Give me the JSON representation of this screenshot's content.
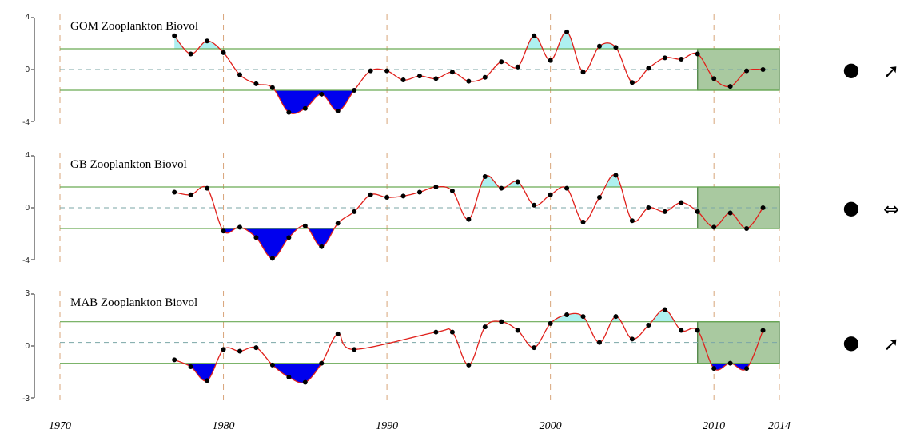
{
  "chart_data": [
    {
      "type": "line",
      "title": "GOM Zooplankton Biovol",
      "ylim": [
        -4,
        4
      ],
      "yticks": [
        "4",
        "0",
        "-4"
      ],
      "mean": 0.0,
      "upper": 1.6,
      "lower": -1.6,
      "highlight_years": [
        2009,
        2014
      ],
      "series": [
        {
          "x": [
            1977,
            1978,
            1979,
            1980,
            1981,
            1982,
            1983,
            1984,
            1985,
            1986,
            1987,
            1988,
            1989,
            1990,
            1991,
            1992,
            1993,
            1994,
            1995,
            1996,
            1997,
            1998,
            1999,
            2000,
            2001,
            2002,
            2003,
            2004,
            2005,
            2006,
            2007,
            2008,
            2009,
            2010,
            2011,
            2012,
            2013
          ],
          "y": [
            2.6,
            1.2,
            2.2,
            1.3,
            -0.4,
            -1.1,
            -1.4,
            -3.3,
            -3.0,
            -1.9,
            -3.2,
            -1.6,
            -0.1,
            -0.1,
            -0.8,
            -0.5,
            -0.7,
            -0.2,
            -0.9,
            -0.6,
            0.6,
            0.2,
            2.6,
            0.7,
            2.9,
            -0.2,
            1.8,
            1.7,
            -1.0,
            0.1,
            0.9,
            0.8,
            1.2,
            -0.7,
            -1.3,
            -0.1,
            0.0
          ]
        }
      ],
      "trend": {
        "mean_symbol": "●",
        "trend_symbol": "➚"
      }
    },
    {
      "type": "line",
      "title": "GB  Zooplankton Biovol",
      "ylim": [
        -4,
        4
      ],
      "yticks": [
        "4",
        "0",
        "-4"
      ],
      "mean": 0.0,
      "upper": 1.6,
      "lower": -1.6,
      "highlight_years": [
        2009,
        2014
      ],
      "series": [
        {
          "x": [
            1977,
            1978,
            1979,
            1980,
            1981,
            1982,
            1983,
            1984,
            1985,
            1986,
            1987,
            1988,
            1989,
            1990,
            1991,
            1992,
            1993,
            1994,
            1995,
            1996,
            1997,
            1998,
            1999,
            2000,
            2001,
            2002,
            2003,
            2004,
            2005,
            2006,
            2007,
            2008,
            2009,
            2010,
            2011,
            2012,
            2013
          ],
          "y": [
            1.2,
            1.0,
            1.5,
            -1.8,
            -1.5,
            -2.3,
            -3.9,
            -2.3,
            -1.4,
            -3.0,
            -1.2,
            -0.3,
            1.0,
            0.8,
            0.9,
            1.2,
            1.6,
            1.3,
            -0.9,
            2.4,
            1.5,
            2.0,
            0.2,
            1.0,
            1.5,
            -1.1,
            0.8,
            2.5,
            -1.0,
            0.0,
            -0.3,
            0.4,
            -0.3,
            -1.5,
            -0.4,
            -1.6,
            0.0
          ]
        }
      ],
      "trend": {
        "mean_symbol": "●",
        "trend_symbol": "⇔"
      }
    },
    {
      "type": "line",
      "title": "MAB  Zooplankton Biovol",
      "ylim": [
        -3,
        3
      ],
      "yticks": [
        "3",
        "0",
        "-3"
      ],
      "mean": 0.2,
      "upper": 1.4,
      "lower": -1.0,
      "highlight_years": [
        2009,
        2014
      ],
      "series": [
        {
          "x": [
            1977,
            1978,
            1979,
            1980,
            1981,
            1982,
            1983,
            1984,
            1985,
            1986,
            1987,
            1988,
            1993,
            1994,
            1995,
            1996,
            1997,
            1998,
            1999,
            2000,
            2001,
            2002,
            2003,
            2004,
            2005,
            2006,
            2007,
            2008,
            2009,
            2010,
            2011,
            2012,
            2013
          ],
          "y": [
            -0.8,
            -1.2,
            -2.0,
            -0.2,
            -0.3,
            -0.1,
            -1.1,
            -1.8,
            -2.1,
            -1.0,
            0.7,
            -0.2,
            0.8,
            0.8,
            -1.1,
            1.1,
            1.4,
            0.9,
            -0.1,
            1.3,
            1.8,
            1.7,
            0.2,
            1.7,
            0.4,
            1.2,
            2.1,
            0.9,
            0.9,
            -1.3,
            -1.0,
            -1.3,
            0.9
          ]
        }
      ],
      "trend": {
        "mean_symbol": "●",
        "trend_symbol": "➚"
      }
    }
  ],
  "x_axis": {
    "ticks": [
      1970,
      1980,
      1990,
      2000,
      2010,
      2014
    ],
    "labels": [
      "1970",
      "1980",
      "1990",
      "2000",
      "2010",
      "2014"
    ]
  },
  "colors": {
    "line": "#e0201b",
    "point": "#000000",
    "above_fill": "#aef0f0",
    "below_fill": "#0000ee",
    "band_line": "#6aaa55",
    "mean_line": "#7aa6a6",
    "decade_line": "#d8a57a",
    "highlight_fill": "#a9c9a0",
    "highlight_stroke": "#3f7a34"
  }
}
